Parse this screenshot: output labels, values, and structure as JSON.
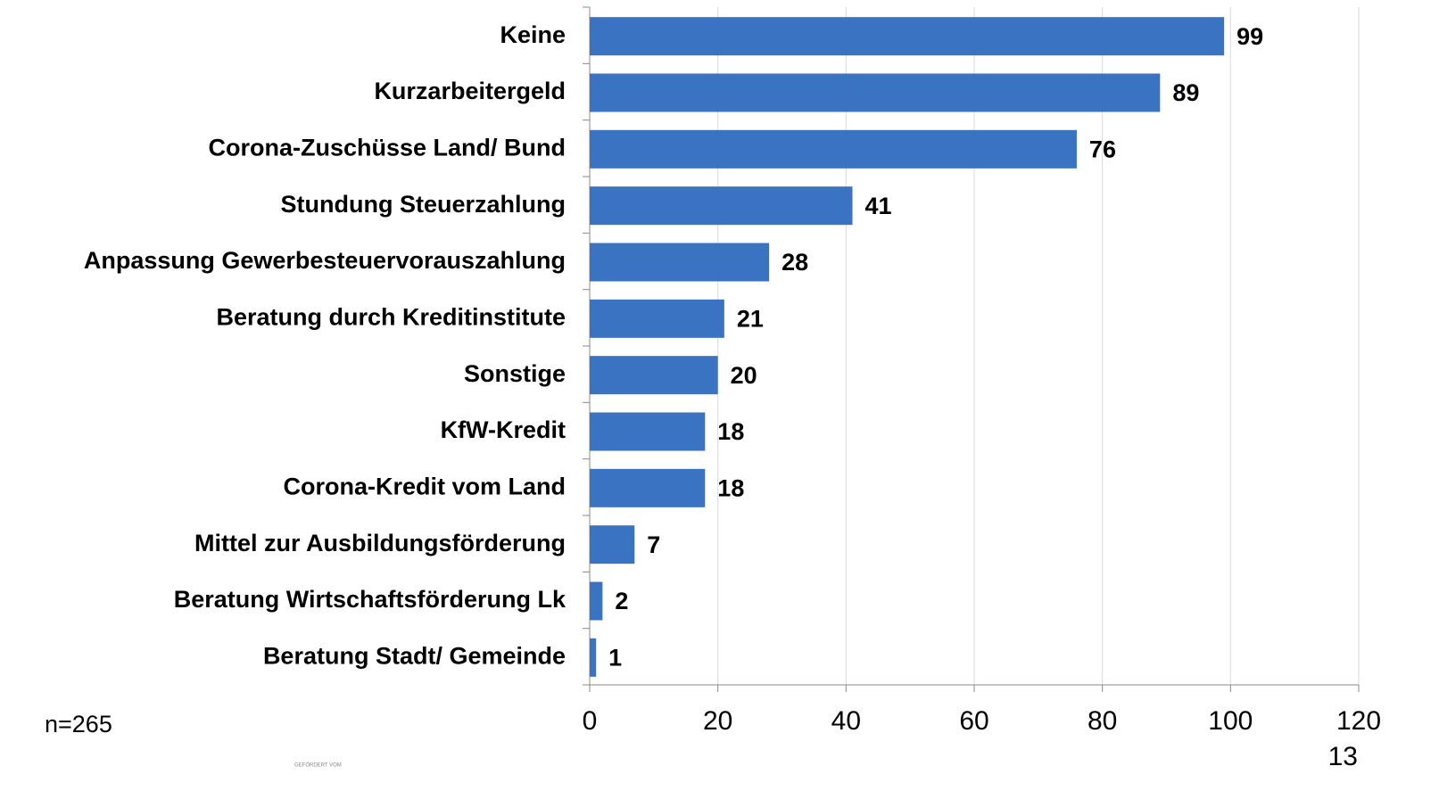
{
  "chart_data": {
    "type": "bar",
    "orientation": "horizontal",
    "categories": [
      "Keine",
      "Kurzarbeitergeld",
      "Corona-Zuschüsse Land/ Bund",
      "Stundung Steuerzahlung",
      "Anpassung Gewerbesteuervorauszahlung",
      "Beratung durch Kreditinstitute",
      "Sonstige",
      "KfW-Kredit",
      "Corona-Kredit vom Land",
      "Mittel zur Ausbildungsförderung",
      "Beratung Wirtschaftsförderung Lk",
      "Beratung Stadt/ Gemeinde"
    ],
    "values": [
      99,
      89,
      76,
      41,
      28,
      21,
      20,
      18,
      18,
      7,
      2,
      1
    ],
    "color": "#3a73c2",
    "xlim": [
      0,
      120
    ],
    "xticks": [
      0,
      20,
      40,
      60,
      80,
      100,
      120
    ],
    "grid": true,
    "note": "n=265",
    "page_number": "13",
    "footer": "GEFÖRDERT VOM"
  }
}
